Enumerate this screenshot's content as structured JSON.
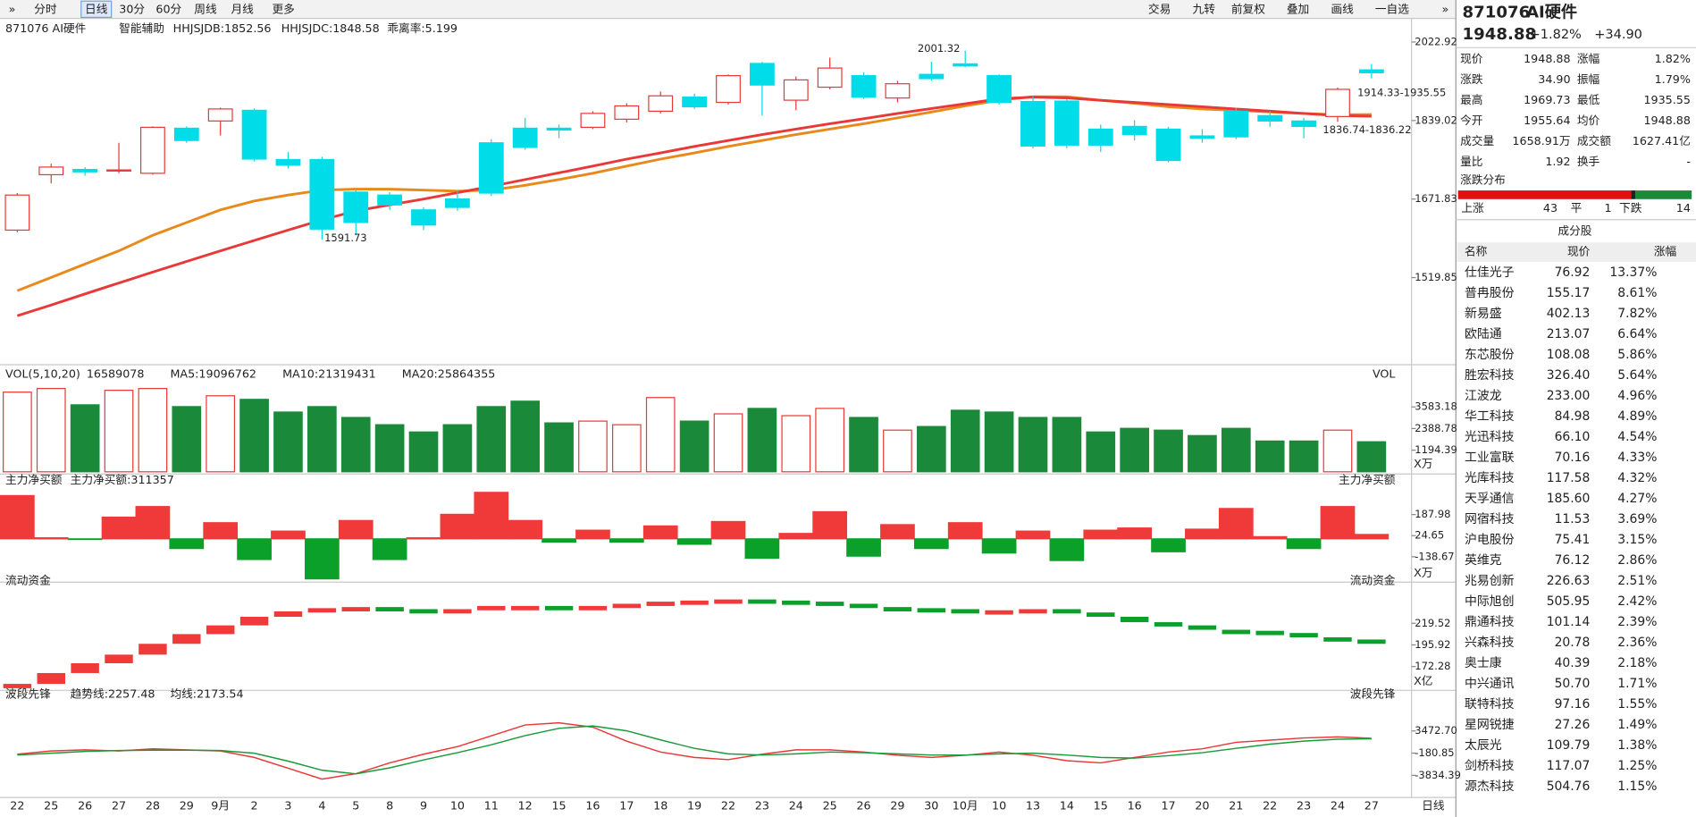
{
  "toolbar": {
    "left": [
      "分时",
      "日线",
      "30分",
      "60分",
      "周线",
      "月线",
      "更多"
    ],
    "right": [
      "交易",
      "九转",
      "前复权",
      "叠加",
      "画线",
      "一自选"
    ]
  },
  "xaxis_corner": "日线",
  "chart_data": [
    {
      "type": "candlestick",
      "title": "871076 AI硬件",
      "subtitle": "智能辅助",
      "categories": [
        "22",
        "25",
        "26",
        "27",
        "28",
        "29",
        "9月",
        "2",
        "3",
        "4",
        "5",
        "8",
        "9",
        "10",
        "11",
        "12",
        "15",
        "16",
        "17",
        "18",
        "19",
        "22",
        "23",
        "24",
        "25",
        "26",
        "29",
        "30",
        "10月",
        "10",
        "13",
        "14",
        "15",
        "16",
        "17",
        "20",
        "21",
        "22",
        "23",
        "24",
        "27"
      ],
      "open": [
        1610,
        1722,
        1733,
        1730,
        1725,
        1822,
        1838,
        1862,
        1754,
        1754,
        1686,
        1680,
        1650,
        1672,
        1790,
        1822,
        1822,
        1824,
        1842,
        1860,
        1892,
        1880,
        1971,
        1885,
        1915,
        1942,
        1890,
        1945,
        1970,
        1942,
        1882,
        1883,
        1820,
        1826,
        1820,
        1805,
        1860,
        1850,
        1838,
        1848,
        1955.64
      ],
      "high": [
        1684,
        1745,
        1738,
        1790,
        1826,
        1826,
        1868,
        1866,
        1770,
        1760,
        1690,
        1686,
        1655,
        1690,
        1798,
        1845,
        1830,
        1860,
        1878,
        1905,
        1900,
        1945,
        1975,
        1940,
        1985,
        1950,
        1930,
        1975,
        2001.32,
        1945,
        1895,
        1888,
        1830,
        1840,
        1825,
        1820,
        1868,
        1860,
        1845,
        1914,
        1969.73
      ],
      "low": [
        1606,
        1704,
        1720,
        1725,
        1722,
        1790,
        1806,
        1750,
        1735,
        1591.73,
        1600,
        1650,
        1610,
        1648,
        1678,
        1775,
        1800,
        1820,
        1835,
        1855,
        1865,
        1875,
        1850,
        1862,
        1910,
        1888,
        1880,
        1930,
        1962,
        1875,
        1778,
        1778,
        1770,
        1795,
        1748,
        1790,
        1798,
        1825,
        1800,
        1836,
        1935.55
      ],
      "close": [
        1680,
        1738,
        1728,
        1732,
        1824,
        1795,
        1865,
        1755,
        1742,
        1612,
        1625,
        1660,
        1620,
        1655,
        1684,
        1780,
        1818,
        1855,
        1872,
        1895,
        1870,
        1942,
        1920,
        1932,
        1960,
        1892,
        1923,
        1935,
        1965,
        1880,
        1783,
        1785,
        1785,
        1808,
        1752,
        1800,
        1803,
        1838,
        1826,
        1910,
        1948.88
      ],
      "up_color": "#e83838",
      "down_color": "#00dde8",
      "series": [
        {
          "name": "HHJSJDB:1852.56",
          "color": "#e8891a",
          "values": [
            1496,
            1520,
            1545,
            1570,
            1600,
            1625,
            1650,
            1668,
            1680,
            1690,
            1692,
            1692,
            1690,
            1688,
            1690,
            1700,
            1712,
            1725,
            1740,
            1755,
            1768,
            1782,
            1795,
            1808,
            1820,
            1832,
            1845,
            1858,
            1872,
            1885,
            1893,
            1893,
            1885,
            1878,
            1870,
            1865,
            1862,
            1858,
            1855,
            1852,
            1852.56
          ]
        },
        {
          "name": "HHJSJDC:1848.58",
          "color": "#e83838",
          "values": [
            1451,
            1470,
            1490,
            1510,
            1530,
            1550,
            1570,
            1590,
            1610,
            1630,
            1648,
            1660,
            1672,
            1685,
            1698,
            1712,
            1726,
            1740,
            1755,
            1768,
            1782,
            1795,
            1808,
            1820,
            1832,
            1843,
            1855,
            1866,
            1877,
            1888,
            1892,
            1890,
            1885,
            1880,
            1875,
            1870,
            1865,
            1860,
            1855,
            1850,
            1848.58
          ]
        }
      ],
      "legend_extra": [
        {
          "text": "乖离率:5.199",
          "color": "#ff5a00"
        }
      ],
      "annotations": [
        "2001.32",
        "1591.73",
        "1914.33-1935.55",
        "1836.74-1836.22"
      ],
      "log_scale": true,
      "ylim": [
        1371,
        2068
      ],
      "yticks": [
        2022.92,
        1839.02,
        1671.83,
        1519.85
      ]
    },
    {
      "type": "bar",
      "title": "VOL(5,10,20)",
      "right_title": "VOL",
      "legend": [
        {
          "text": "16589078",
          "color": "#222222"
        },
        {
          "text": "MA5:19096762",
          "color": "#e8891a"
        },
        {
          "text": "MA10:21319431",
          "color": "#e020e0"
        },
        {
          "text": "MA20:25864355",
          "color": "#1a9a3a"
        }
      ],
      "unit": "X万",
      "up_color": "#e83838",
      "down_color": "#1a8a3a",
      "values": [
        4400,
        4600,
        3700,
        4500,
        4600,
        3600,
        4200,
        4000,
        3300,
        3600,
        3000,
        2600,
        2200,
        2600,
        3600,
        3900,
        2700,
        2800,
        2600,
        4100,
        2800,
        3200,
        3500,
        3100,
        3500,
        3000,
        2300,
        2500,
        3400,
        3300,
        3000,
        3000,
        2200,
        2400,
        2300,
        2000,
        2400,
        1700,
        1700,
        2300,
        1658.91
      ],
      "ylim": [
        0,
        4840
      ],
      "yticks": [
        1194.39,
        2388.78,
        3583.18
      ]
    },
    {
      "type": "bar",
      "title": "主力净买额",
      "legend": [
        {
          "text": "主力净买额:311357",
          "color": "#e83838"
        }
      ],
      "unit": "X万",
      "up_color": "#f03a3a",
      "down_color": "#0aa02a",
      "values": [
        335,
        8,
        -5,
        168,
        250,
        -75,
        125,
        -160,
        60,
        -310,
        142,
        -160,
        8,
        190,
        360,
        142,
        -25,
        67,
        -25,
        100,
        -42,
        134,
        -150,
        42,
        210,
        -134,
        110,
        -75,
        125,
        -110,
        60,
        -168,
        67,
        84,
        -100,
        75,
        235,
        17,
        -75,
        250,
        34
      ],
      "ylim": [
        -327,
        385
      ],
      "yticks": [
        -138.67,
        24.65,
        187.98
      ]
    },
    {
      "type": "floating-bar",
      "title": "流动资金",
      "unit": "X亿",
      "up_color": "#f03a3a",
      "down_color": "#0aa02a",
      "values": [
        153.4,
        165.2,
        175.9,
        185.3,
        197.1,
        207.7,
        217.2,
        226.6,
        232.5,
        236.0,
        237.2,
        234.9,
        231.3,
        234.9,
        238.4,
        238.4,
        237.2,
        238.4,
        240.8,
        243.1,
        244.3,
        245.5,
        244.3,
        243.1,
        240.8,
        237.2,
        236.0,
        234.9,
        233.7,
        233.7,
        234.9,
        231.3,
        226.6,
        220.7,
        217.2,
        212.4,
        211.3,
        208.9,
        204.2,
        201.8,
        199.5
      ],
      "ylim": [
        147.5,
        256.1
      ],
      "yticks": [
        172.28,
        195.92,
        219.52
      ]
    },
    {
      "type": "line",
      "title": "波段先锋",
      "series": [
        {
          "name": "趋势线:2257.48",
          "color": "#e83838",
          "values": [
            -359,
            176,
            354,
            176,
            532,
            354,
            176,
            -893,
            -2673,
            -4453,
            -3563,
            -1783,
            -359,
            887,
            2667,
            4447,
            4803,
            4091,
            1777,
            -3,
            -893,
            -1249,
            -359,
            354,
            354,
            -3,
            -537,
            -893,
            -537,
            -3,
            -537,
            -1427,
            -1783,
            -893,
            -3,
            532,
            1599,
            1955,
            2311,
            2489,
            2257.48
          ]
        },
        {
          "name": "均线:2173.54",
          "color": "#1a9a3a",
          "values": [
            -500,
            -200,
            100,
            250,
            300,
            300,
            250,
            -200,
            -1500,
            -3000,
            -3600,
            -2600,
            -1300,
            -100,
            1200,
            2700,
            3900,
            4300,
            3500,
            2000,
            600,
            -300,
            -500,
            -300,
            0,
            -100,
            -300,
            -500,
            -500,
            -300,
            -200,
            -500,
            -900,
            -1000,
            -600,
            -100,
            600,
            1300,
            1800,
            2100,
            2173.54
          ]
        }
      ],
      "ylim": [
        -7130,
        8020
      ],
      "yticks": [
        -3834.39,
        -180.85,
        {
          "value": 3472.7,
          "label": "3472.70"
        }
      ]
    }
  ],
  "quote": {
    "code": "871076",
    "name": "AI硬件",
    "price": "1948.88",
    "pct": "+1.82%",
    "change": "+34.90",
    "rows": [
      [
        "现价",
        "1948.88",
        "涨幅",
        "1.82%"
      ],
      [
        "涨跌",
        "34.90",
        "振幅",
        "1.79%"
      ],
      [
        "最高",
        "1969.73",
        "最低",
        "1935.55"
      ],
      [
        "今开",
        "1955.64",
        "均价",
        "1948.88"
      ],
      [
        "成交量",
        "1658.91万",
        "成交额",
        "1627.41亿"
      ],
      [
        "量比",
        "1.92",
        "换手",
        "-"
      ]
    ]
  },
  "distribution": {
    "title": "涨跌分布",
    "up_label": "上涨",
    "up": 43,
    "flat_label": "平",
    "flat": 1,
    "down_label": "下跌",
    "down": 14
  },
  "constituents": {
    "title": "成分股",
    "headers": [
      "名称",
      "现价",
      "涨幅"
    ],
    "rows": [
      {
        "name": "仕佳光子",
        "price": "76.92",
        "change": "13.37%",
        "color": "#1a5fd0"
      },
      {
        "name": "普冉股份",
        "price": "155.17",
        "change": "8.61%",
        "color": "#1a5fd0"
      },
      {
        "name": "新易盛",
        "price": "402.13",
        "change": "7.82%",
        "color": "#1a5fd0"
      },
      {
        "name": "欧陆通",
        "price": "213.07",
        "change": "6.64%",
        "color": "#1a5fd0"
      },
      {
        "name": "东芯股份",
        "price": "108.08",
        "change": "5.86%",
        "color": "#1a5fd0"
      },
      {
        "name": "胜宏科技",
        "price": "326.40",
        "change": "5.64%",
        "color": "#1a5fd0"
      },
      {
        "name": "江波龙",
        "price": "233.00",
        "change": "4.96%",
        "color": "#1a5fd0"
      },
      {
        "name": "华工科技",
        "price": "84.98",
        "change": "4.89%",
        "color": "#222222"
      },
      {
        "name": "光迅科技",
        "price": "66.10",
        "change": "4.54%",
        "color": "#222222"
      },
      {
        "name": "工业富联",
        "price": "70.16",
        "change": "4.33%",
        "color": "#1a5fd0"
      },
      {
        "name": "光库科技",
        "price": "117.58",
        "change": "4.32%",
        "color": "#222222"
      },
      {
        "name": "天孚通信",
        "price": "185.60",
        "change": "4.27%",
        "color": "#1a5fd0"
      },
      {
        "name": "网宿科技",
        "price": "11.53",
        "change": "3.69%",
        "color": "#222222"
      },
      {
        "name": "沪电股份",
        "price": "75.41",
        "change": "3.15%",
        "color": "#1a5fd0"
      },
      {
        "name": "英维克",
        "price": "76.12",
        "change": "2.86%",
        "color": "#1a5fd0"
      },
      {
        "name": "兆易创新",
        "price": "226.63",
        "change": "2.51%",
        "color": "#1a5fd0"
      },
      {
        "name": "中际旭创",
        "price": "505.95",
        "change": "2.42%",
        "color": "#1a5fd0"
      },
      {
        "name": "鼎通科技",
        "price": "101.14",
        "change": "2.39%",
        "color": "#222222"
      },
      {
        "name": "兴森科技",
        "price": "20.78",
        "change": "2.36%",
        "color": "#1a5fd0"
      },
      {
        "name": "奥士康",
        "price": "40.39",
        "change": "2.18%",
        "color": "#222222"
      },
      {
        "name": "中兴通讯",
        "price": "50.70",
        "change": "1.71%",
        "color": "#222222"
      },
      {
        "name": "联特科技",
        "price": "97.16",
        "change": "1.55%",
        "color": "#222222"
      },
      {
        "name": "星网锐捷",
        "price": "27.26",
        "change": "1.49%",
        "color": "#222222"
      },
      {
        "name": "太辰光",
        "price": "109.79",
        "change": "1.38%",
        "color": "#1a5fd0"
      },
      {
        "name": "剑桥科技",
        "price": "117.07",
        "change": "1.25%",
        "color": "#1a5fd0"
      },
      {
        "name": "源杰科技",
        "price": "504.76",
        "change": "1.15%",
        "color": "#1a5fd0"
      }
    ]
  }
}
